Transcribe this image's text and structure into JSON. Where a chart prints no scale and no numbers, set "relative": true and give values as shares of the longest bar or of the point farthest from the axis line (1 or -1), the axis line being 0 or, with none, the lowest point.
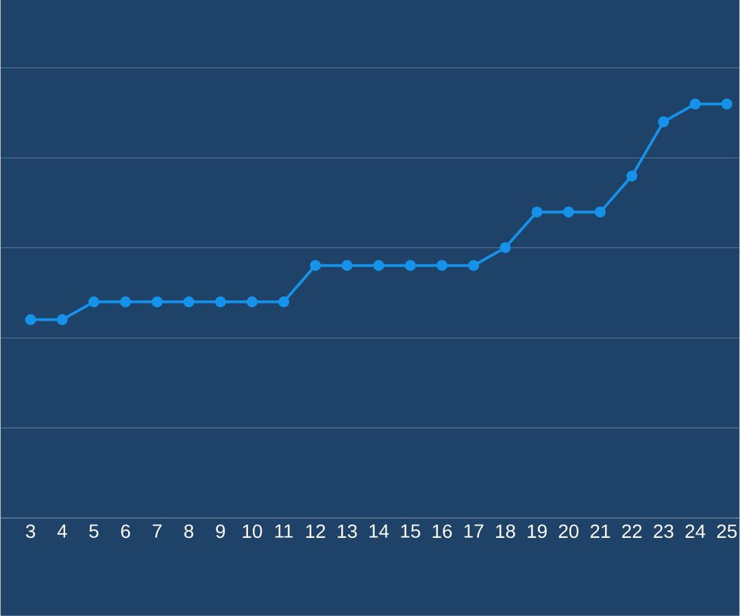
{
  "chart_data": {
    "type": "line",
    "relative": true,
    "categories": [
      "3",
      "4",
      "5",
      "6",
      "7",
      "8",
      "9",
      "10",
      "11",
      "12",
      "13",
      "14",
      "15",
      "16",
      "17",
      "18",
      "19",
      "20",
      "21",
      "22",
      "23",
      "24",
      "25"
    ],
    "series": [
      {
        "color": "#1593ea",
        "values": [
          0.479,
          0.479,
          0.522,
          0.522,
          0.522,
          0.522,
          0.522,
          0.522,
          0.522,
          0.61,
          0.61,
          0.61,
          0.61,
          0.61,
          0.61,
          0.653,
          0.739,
          0.739,
          0.739,
          0.826,
          0.957,
          1,
          1
        ]
      }
    ],
    "ref_lines": [
      {
        "axis": "y",
        "value": 0.2175,
        "color": "#6a83a0"
      },
      {
        "axis": "y",
        "value": 0.435,
        "color": "#6a83a0"
      },
      {
        "axis": "y",
        "value": 0.6525,
        "color": "#6a83a0"
      },
      {
        "axis": "y",
        "value": 0.87,
        "color": "#6a83a0"
      },
      {
        "axis": "y",
        "value": 1.0875,
        "color": "#6a83a0"
      }
    ],
    "marker": "circle",
    "line_style": "solid"
  }
}
